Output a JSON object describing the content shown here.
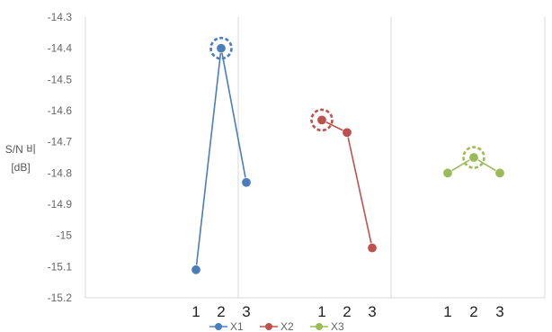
{
  "chart_data": {
    "type": "line",
    "ylabel_lines": [
      "S/N 비",
      "[dB]"
    ],
    "ylim": [
      -15.2,
      -14.3
    ],
    "yticks": [
      "-14.3",
      "-14.4",
      "-14.5",
      "-14.6",
      "-14.7",
      "-14.8",
      "-14.9",
      "-15",
      "-15.1",
      "-15.2"
    ],
    "grid": "vertical",
    "legend_position": "bottom",
    "categories": [
      "1",
      "2",
      "3"
    ],
    "series": [
      {
        "name": "X1",
        "values": [
          -15.11,
          -14.4,
          -14.83
        ],
        "color": "#4a7ebb",
        "highlight_index": 1
      },
      {
        "name": "X2",
        "values": [
          -14.63,
          -14.67,
          -15.04
        ],
        "color": "#c0504d",
        "highlight_index": 0
      },
      {
        "name": "X3",
        "values": [
          -14.8,
          -14.75,
          -14.8
        ],
        "color": "#9bbb59",
        "highlight_index": 1
      }
    ]
  }
}
